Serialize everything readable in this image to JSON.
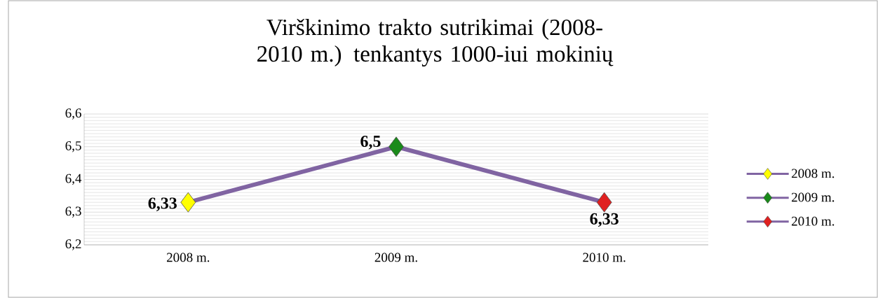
{
  "chart_data": {
    "type": "line",
    "title": "Virškinimo trakto sutrikimai (2008-2010 m.) tenkantys 1000-iui mokinių",
    "categories": [
      "2008 m.",
      "2009 m.",
      "2010 m."
    ],
    "series": [
      {
        "color": "#8064a2",
        "values": [
          6.33,
          6.5,
          6.33
        ],
        "marker": "none"
      },
      {
        "type": "scatter",
        "name": "2008 m.",
        "color": "#ffff00",
        "values": [
          6.33,
          null,
          null
        ],
        "value_labels": [
          "6,33",
          null,
          null
        ]
      },
      {
        "type": "scatter",
        "name": "2009 m.",
        "color": "#1a8a1a",
        "values": [
          null,
          6.5,
          null
        ],
        "value_labels": [
          null,
          "6,5",
          null
        ]
      },
      {
        "type": "scatter",
        "name": "2010 m.",
        "color": "#e02020",
        "values": [
          null,
          null,
          6.33
        ],
        "value_labels": [
          null,
          null,
          "6,33"
        ]
      }
    ],
    "ylim": [
      6.2,
      6.6
    ],
    "yticks": [
      {
        "value": 6.2,
        "label": "6,2"
      },
      {
        "value": 6.3,
        "label": "6,3"
      },
      {
        "value": 6.4,
        "label": "6,4"
      },
      {
        "value": 6.5,
        "label": "6,5"
      },
      {
        "value": 6.6,
        "label": "6,6"
      }
    ],
    "grid": "y",
    "legend": "right",
    "marker": "diamond"
  }
}
